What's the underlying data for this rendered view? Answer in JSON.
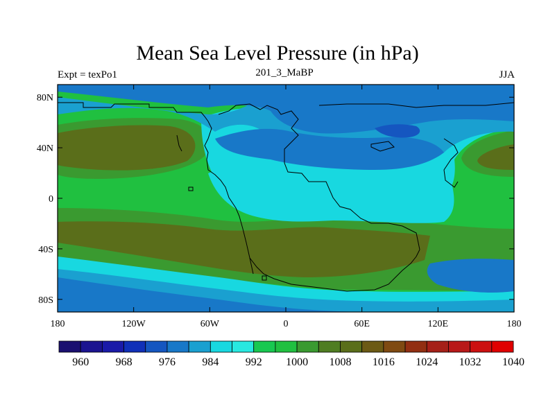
{
  "title": "Mean Sea Level Pressure (in hPa)",
  "left_label": "Expt = texPo1",
  "center_label": "201_3_MaBP",
  "right_label": "JJA",
  "axes": {
    "lat_ticks": [
      "80N",
      "40N",
      "0",
      "40S",
      "80S"
    ],
    "lat_values": [
      80,
      40,
      0,
      -40,
      -80
    ],
    "lon_ticks": [
      "180",
      "120W",
      "60W",
      "0",
      "60E",
      "120E",
      "180"
    ],
    "lon_values": [
      -180,
      -120,
      -60,
      0,
      60,
      120,
      180
    ],
    "lat_range": [
      -90,
      90
    ],
    "lon_range": [
      -180,
      180
    ]
  },
  "colorbar": {
    "labels": [
      "960",
      "968",
      "976",
      "984",
      "992",
      "1000",
      "1008",
      "1016",
      "1024",
      "1032",
      "1040"
    ],
    "colors": [
      "#1a1070",
      "#1b1490",
      "#1a1aa8",
      "#1030b8",
      "#1556c0",
      "#1878c8",
      "#1aa0d0",
      "#18d8e0",
      "#28e8e0",
      "#18c850",
      "#20c040",
      "#3a9a30",
      "#4f7d22",
      "#5a6e1a",
      "#6c5a15",
      "#7f4a12",
      "#922f12",
      "#a52018",
      "#b81818",
      "#cc1010",
      "#e00000"
    ]
  },
  "field_colors": {
    "deep_blue": "#1556c0",
    "mid_blue": "#1878c8",
    "light_blue": "#1aa0d0",
    "cyan": "#18d8e0",
    "green": "#20c040",
    "olive_green": "#3a9a30",
    "olive": "#5a6e1a"
  }
}
